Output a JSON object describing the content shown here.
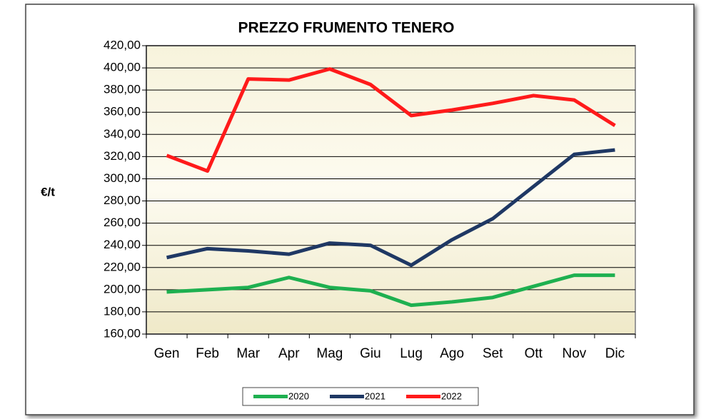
{
  "chart_data": {
    "type": "line",
    "title": "PREZZO FRUMENTO TENERO",
    "y_label": "€/t",
    "categories": [
      "Gen",
      "Feb",
      "Mar",
      "Apr",
      "Mag",
      "Giu",
      "Lug",
      "Ago",
      "Set",
      "Ott",
      "Nov",
      "Dic"
    ],
    "series": [
      {
        "name": "2020",
        "color": "#1eb050",
        "values": [
          198,
          200,
          202,
          211,
          202,
          199,
          186,
          189,
          193,
          203,
          213,
          213
        ]
      },
      {
        "name": "2021",
        "color": "#1f3864",
        "values": [
          229,
          237,
          235,
          232,
          242,
          240,
          222,
          245,
          264,
          293,
          322,
          326
        ]
      },
      {
        "name": "2022",
        "color": "#ff1a1a",
        "values": [
          321,
          307,
          390,
          389,
          399,
          385,
          357,
          362,
          368,
          375,
          371,
          348
        ]
      }
    ],
    "ylim": [
      160,
      420
    ],
    "yticks": [
      {
        "value": 160,
        "label": "160,00"
      },
      {
        "value": 180,
        "label": "180,00"
      },
      {
        "value": 200,
        "label": "200,00"
      },
      {
        "value": 220,
        "label": "220,00"
      },
      {
        "value": 240,
        "label": "240,00"
      },
      {
        "value": 260,
        "label": "260,00"
      },
      {
        "value": 280,
        "label": "280,00"
      },
      {
        "value": 300,
        "label": "300,00"
      },
      {
        "value": 320,
        "label": "320,00"
      },
      {
        "value": 340,
        "label": "340,00"
      },
      {
        "value": 360,
        "label": "360,00"
      },
      {
        "value": 380,
        "label": "380,00"
      },
      {
        "value": 400,
        "label": "400,00"
      },
      {
        "value": 420,
        "label": "420,00"
      }
    ],
    "grid": true,
    "legend": "bottom"
  }
}
